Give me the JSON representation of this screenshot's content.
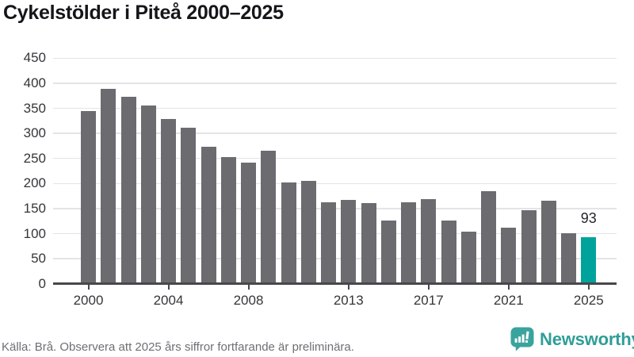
{
  "title": "Cykelstölder i Piteå 2000–2025",
  "chart_data": {
    "type": "bar",
    "title": "Cykelstölder i Piteå 2000–2025",
    "categories": [
      2000,
      2001,
      2002,
      2003,
      2004,
      2005,
      2006,
      2007,
      2008,
      2009,
      2010,
      2011,
      2012,
      2013,
      2014,
      2015,
      2016,
      2017,
      2018,
      2019,
      2020,
      2021,
      2022,
      2023,
      2024,
      2025
    ],
    "values": [
      344,
      388,
      373,
      356,
      328,
      311,
      273,
      253,
      242,
      265,
      202,
      205,
      163,
      167,
      161,
      126,
      162,
      169,
      126,
      104,
      185,
      112,
      147,
      165,
      101,
      93
    ],
    "xlabel": "",
    "ylabel": "",
    "ylim": [
      0,
      450
    ],
    "yticks": [
      0,
      50,
      100,
      150,
      200,
      250,
      300,
      350,
      400,
      450
    ],
    "xticks": [
      2000,
      2004,
      2008,
      2013,
      2017,
      2021,
      2025
    ],
    "grid": true,
    "legend": "none",
    "bar_color": "#6b6b70",
    "highlight_color": "#00a39c",
    "highlight_category": 2025,
    "value_label": {
      "category": 2025,
      "text": "93"
    }
  },
  "footer": {
    "source_note": "Källa: Brå. Observera att 2025 års siffror fortfarande är preliminära.",
    "brand": "Newsworthy"
  },
  "colors": {
    "background": "#ffffff",
    "bar": "#6b6b70",
    "highlight": "#00a39c",
    "grid": "#e4e4e7",
    "axis": "#47474c",
    "title_text": "#15151a",
    "tick_text": "#36363a",
    "footer_text": "#6f6f74",
    "brand_teal": "#2f9e99"
  }
}
